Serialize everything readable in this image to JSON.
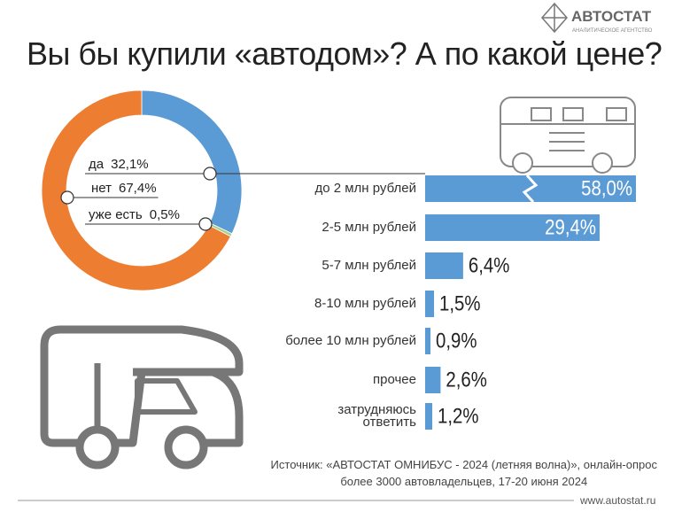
{
  "header": {
    "title": "Вы бы купили «автодом»? А по какой цене?",
    "logo": "АВТОСТАТ",
    "logo_subtitle": "АНАЛИТИЧЕСКОЕ АГЕНТСТВО"
  },
  "chart_data": [
    {
      "type": "pie",
      "categories": [
        "да",
        "нет",
        "уже есть"
      ],
      "values": [
        32.1,
        67.4,
        0.5
      ],
      "value_labels": [
        "32,1%",
        "67,4%",
        "0,5%"
      ],
      "colors": [
        "#5b9bd5",
        "#ed7d31",
        "#a9d18e"
      ]
    },
    {
      "type": "bar",
      "orientation": "horizontal",
      "categories": [
        "до 2 млн рублей",
        "2-5 млн рублей",
        "5-7 млн рублей",
        "8-10 млн рублей",
        "более 10 млн рублей",
        "прочее",
        "затрудняюсь\nответить"
      ],
      "values": [
        58.0,
        29.4,
        6.4,
        1.5,
        0.9,
        2.6,
        1.2
      ],
      "value_labels": [
        "58,0%",
        "29,4%",
        "6,4%",
        "1,5%",
        "0,9%",
        "2,6%",
        "1,2%"
      ],
      "color": "#5b9bd5"
    }
  ],
  "footer": {
    "source": "Источник: «АВТОСТАТ ОМНИБУС - 2024 (летняя волна)», онлайн-опрос\nболее 3000 автовладельцев, 17-20 июня 2024",
    "url": "www.autostat.ru"
  }
}
